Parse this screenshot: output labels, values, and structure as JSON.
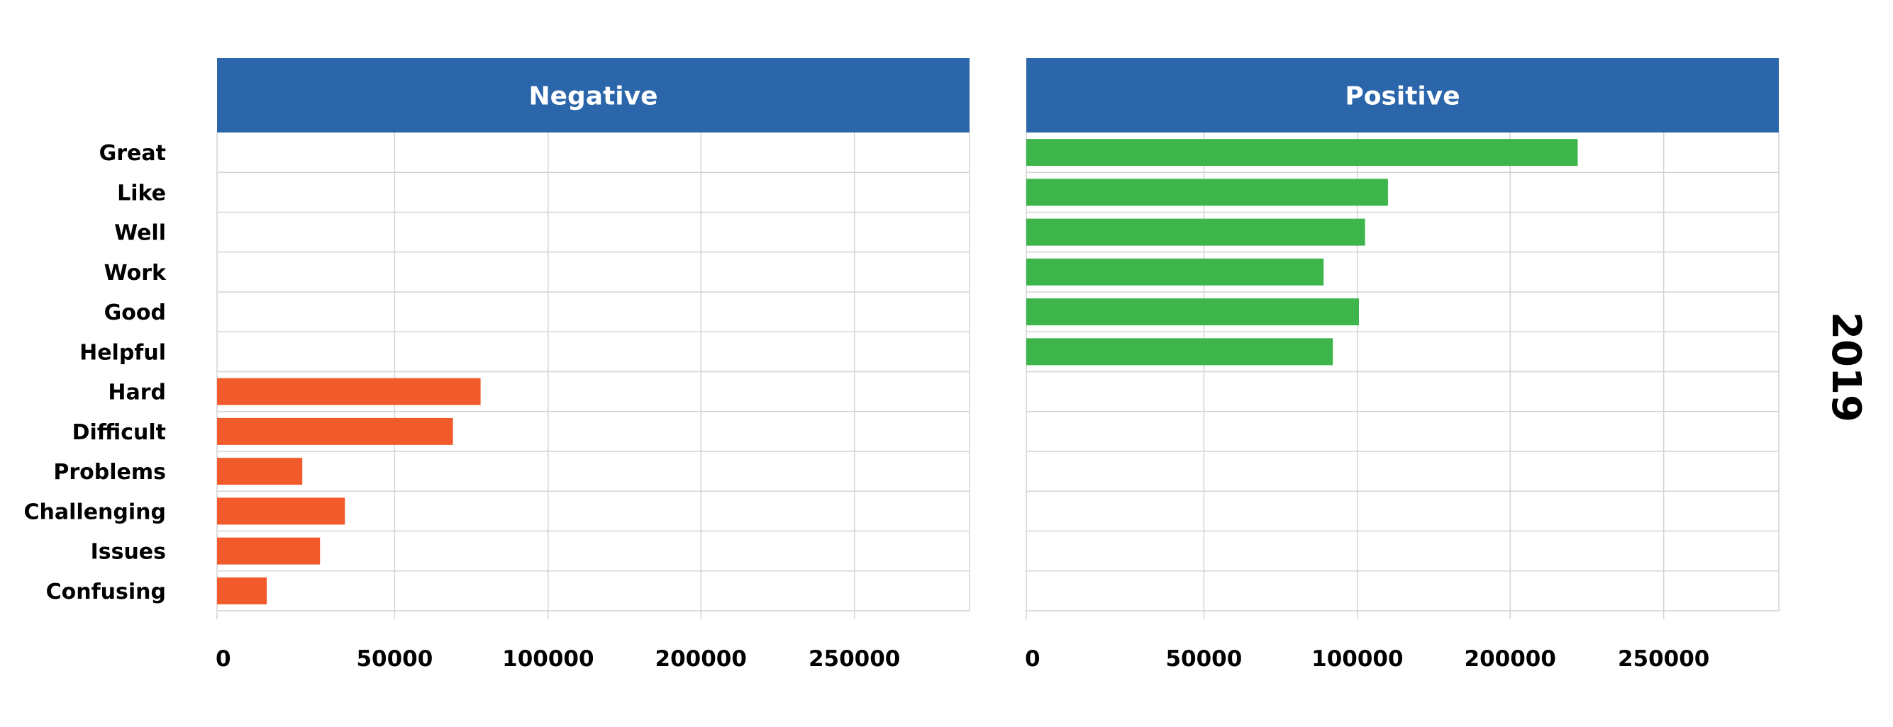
{
  "chart_data": {
    "type": "bar",
    "orientation": "horizontal",
    "side_label": "2019",
    "categories": [
      "Great",
      "Like",
      "Well",
      "Work",
      "Good",
      "Helpful",
      "Hard",
      "Difficult",
      "Problems",
      "Challenging",
      "Issues",
      "Confusing"
    ],
    "x_ticks": [
      0,
      50000,
      100000,
      200000,
      250000
    ],
    "x_tick_labels": [
      "0",
      "50000",
      "100000",
      "200000",
      "250000"
    ],
    "xlim": [
      0,
      285000
    ],
    "grid": true,
    "panels": [
      {
        "title": "Negative",
        "color": "#f15a2b",
        "values": [
          null,
          null,
          null,
          null,
          null,
          null,
          78000,
          69000,
          24000,
          36000,
          29000,
          14000
        ]
      },
      {
        "title": "Positive",
        "color": "#3db54a",
        "values": [
          222000,
          120000,
          105000,
          89000,
          101000,
          92000,
          null,
          null,
          null,
          null,
          null,
          null
        ]
      }
    ],
    "colors": {
      "header": "#2b66ab",
      "grid": "#d4d4d4"
    }
  }
}
